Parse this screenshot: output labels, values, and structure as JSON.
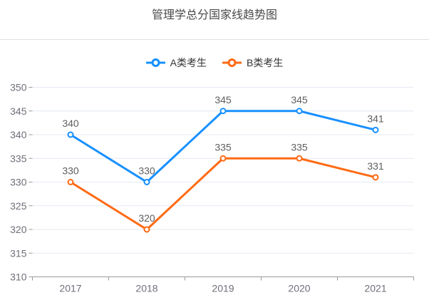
{
  "chart_data": {
    "type": "line",
    "title": "管理学总分国家线趋势图",
    "categories": [
      "2017",
      "2018",
      "2019",
      "2020",
      "2021"
    ],
    "series": [
      {
        "name": "A类考生",
        "color": "#1890ff",
        "values": [
          340,
          330,
          345,
          345,
          341
        ]
      },
      {
        "name": "B类考生",
        "color": "#ff6a14",
        "values": [
          330,
          320,
          335,
          335,
          331
        ]
      }
    ],
    "xlabel": "",
    "ylabel": "",
    "ylim": [
      310,
      350
    ],
    "yticks": [
      310,
      315,
      320,
      325,
      330,
      335,
      340,
      345,
      350
    ],
    "legend_position": "top-center",
    "grid": "horizontal",
    "show_data_labels": true,
    "marker": "hollow-circle"
  },
  "style": {
    "background": "#ffffff",
    "title_color": "#4a4a4a",
    "legend_text_color": "#333333",
    "axis_label_color": "#6e7079",
    "data_label_color": "#5e5e5e",
    "grid_line_color": "#e4e9f2",
    "axis_line_color": "#999999",
    "divider_color": "#e0e0e0"
  }
}
